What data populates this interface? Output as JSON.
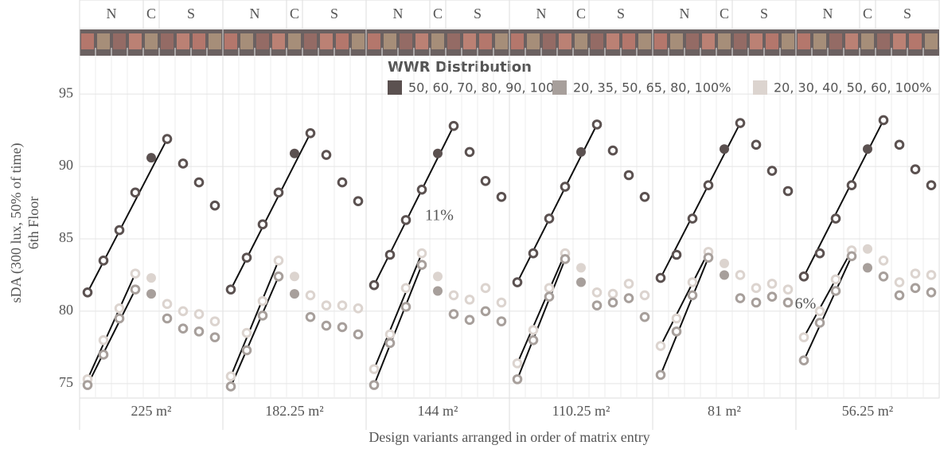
{
  "chart_data": {
    "type": "dot",
    "y_label": "sDA (300 lux, 50% of time)",
    "y_label_2": "6th Floor",
    "x_label": "Design variants arranged in order of matrix entry",
    "legend_title": "WWR Distribution",
    "ylim": [
      74,
      98.2
    ],
    "yticks": [
      75,
      80,
      85,
      90,
      95
    ],
    "grid": true,
    "filled_group": 1,
    "column_groups": [
      {
        "label": "N",
        "count": 4
      },
      {
        "label": "C",
        "count": 1
      },
      {
        "label": "S",
        "count": 4
      }
    ],
    "series": [
      {
        "name": "50, 60, 70, 80, 90, 100%",
        "color": "#5b5150"
      },
      {
        "name": "20, 35, 50, 65, 80, 100%",
        "color": "#a79f9b"
      },
      {
        "name": "20, 30, 40, 50, 60, 100%",
        "color": "#dcd4cf"
      }
    ],
    "panels": [
      {
        "label": "225 m²",
        "values": [
          [
            81.3,
            83.5,
            85.6,
            88.2,
            90.6,
            91.9,
            90.2,
            88.9,
            87.3
          ],
          [
            74.9,
            77.0,
            79.5,
            81.5,
            81.2,
            79.5,
            78.8,
            78.6,
            78.2
          ],
          [
            75.3,
            78.0,
            80.2,
            82.6,
            82.3,
            80.5,
            80.0,
            79.8,
            79.3
          ]
        ]
      },
      {
        "label": "182.25 m²",
        "values": [
          [
            81.5,
            83.7,
            86.0,
            88.2,
            90.9,
            92.3,
            90.8,
            88.9,
            87.6
          ],
          [
            74.8,
            77.3,
            79.7,
            82.4,
            81.2,
            79.6,
            79.0,
            78.9,
            78.4
          ],
          [
            75.5,
            78.5,
            80.7,
            83.5,
            82.4,
            81.1,
            80.4,
            80.4,
            80.2
          ]
        ]
      },
      {
        "label": "144 m²",
        "values": [
          [
            81.8,
            83.9,
            86.3,
            88.4,
            90.9,
            92.8,
            91.0,
            89.0,
            87.9
          ],
          [
            74.9,
            77.8,
            80.3,
            83.2,
            81.4,
            79.8,
            79.4,
            80.0,
            79.3
          ],
          [
            76.0,
            78.4,
            81.6,
            84.0,
            82.4,
            81.1,
            80.8,
            81.6,
            80.6
          ]
        ]
      },
      {
        "label": "110.25 m²",
        "values": [
          [
            82.0,
            84.0,
            86.4,
            88.6,
            91.0,
            92.9,
            91.1,
            89.4,
            87.9
          ],
          [
            75.3,
            78.0,
            81.0,
            83.6,
            82.0,
            80.4,
            80.6,
            80.9,
            79.6
          ],
          [
            76.4,
            78.7,
            81.6,
            84.0,
            83.0,
            81.3,
            81.2,
            81.9,
            81.1
          ]
        ]
      },
      {
        "label": "81 m²",
        "values": [
          [
            82.3,
            83.9,
            86.4,
            88.7,
            91.2,
            93.0,
            91.5,
            89.7,
            88.3
          ],
          [
            75.6,
            78.6,
            81.1,
            83.7,
            82.5,
            80.9,
            80.6,
            81.0,
            80.6
          ],
          [
            77.6,
            79.5,
            82.0,
            84.1,
            83.3,
            82.5,
            81.6,
            81.9,
            81.5
          ]
        ]
      },
      {
        "label": "56.25 m²",
        "values": [
          [
            82.4,
            84.0,
            86.4,
            88.7,
            91.2,
            93.2,
            91.5,
            89.8,
            88.7
          ],
          [
            76.6,
            79.2,
            81.4,
            83.8,
            83.0,
            82.4,
            81.1,
            81.6,
            81.3
          ],
          [
            78.2,
            80.0,
            82.2,
            84.2,
            84.3,
            83.5,
            82.0,
            82.6,
            82.5
          ]
        ]
      }
    ],
    "annotations": [
      "11%",
      "6%"
    ]
  }
}
